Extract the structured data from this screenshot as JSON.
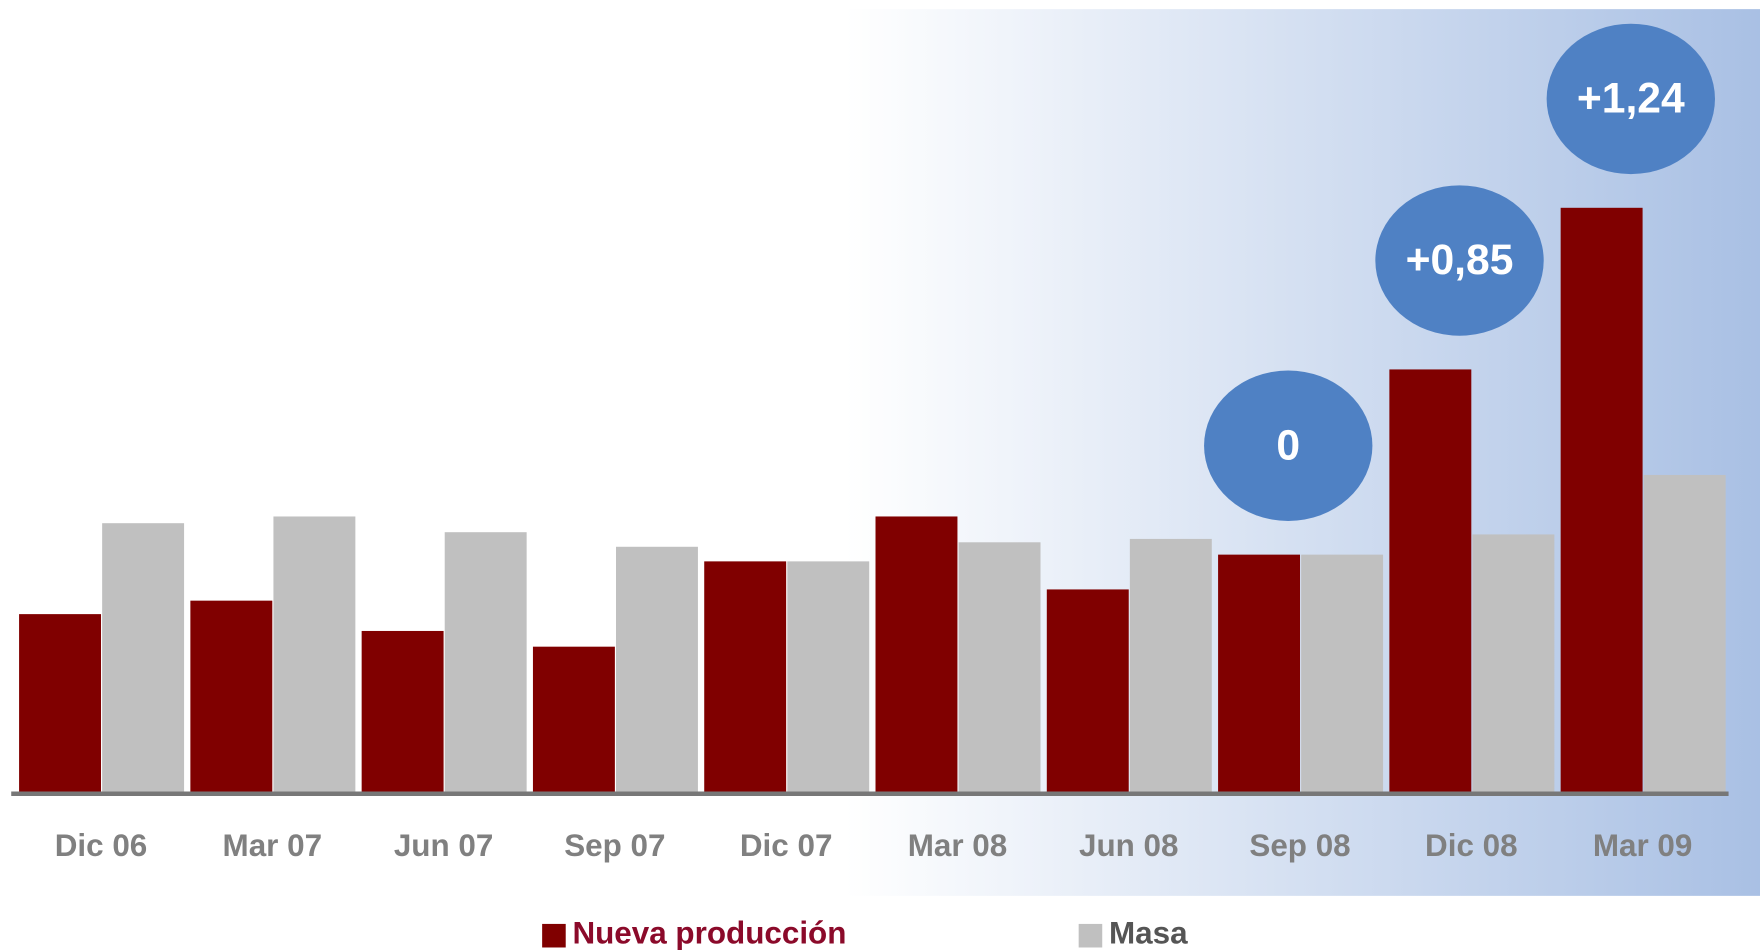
{
  "chart_data": {
    "type": "bar",
    "categories": [
      "Dic 06",
      "Mar 07",
      "Jun 07",
      "Sep 07",
      "Dic 07",
      "Mar 08",
      "Jun 08",
      "Sep 08",
      "Dic 08",
      "Mar 09"
    ],
    "series": [
      {
        "name": "Nueva producción",
        "color": "#800000",
        "values": [
          160,
          172,
          145,
          131,
          207,
          247,
          182,
          213,
          378,
          522
        ]
      },
      {
        "name": "Masa",
        "color": "#c0c0c0",
        "values": [
          241,
          247,
          233,
          220,
          207,
          224,
          227,
          213,
          231,
          284
        ]
      }
    ],
    "annotations": [
      null,
      null,
      null,
      null,
      null,
      null,
      null,
      "0",
      "+0,85",
      "+1,24"
    ],
    "ylim": [
      0,
      700
    ],
    "legend": "bottom"
  }
}
